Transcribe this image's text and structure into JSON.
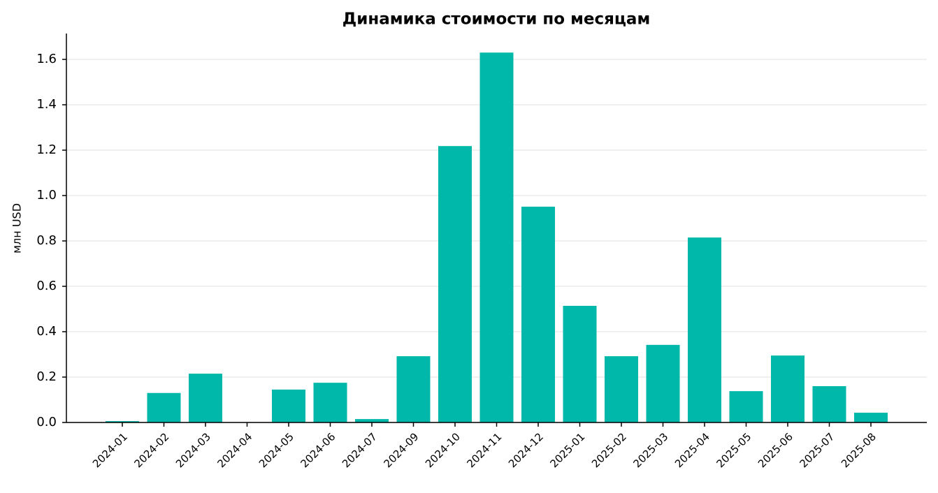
{
  "chart_data": {
    "type": "bar",
    "title": "Динамика стоимости по месяцам",
    "y_label": "млн USD",
    "categories": [
      "2024-01",
      "2024-02",
      "2024-03",
      "2024-04",
      "2024-05",
      "2024-06",
      "2024-07",
      "2024-09",
      "2024-10",
      "2024-11",
      "2024-12",
      "2025-01",
      "2025-02",
      "2025-03",
      "2025-04",
      "2025-05",
      "2025-06",
      "2025-07",
      "2025-08"
    ],
    "values": [
      0.006,
      0.13,
      0.215,
      0,
      0.145,
      0.175,
      0.015,
      0.292,
      1.218,
      1.63,
      0.951,
      0.514,
      0.292,
      0.342,
      0.815,
      0.138,
      0.295,
      0.16,
      0.043
    ],
    "color": "#00b8a9",
    "ylim": [
      0,
      1.714
    ],
    "yticks": [
      {
        "value": 0,
        "label": "0.0"
      },
      0.2,
      0.4,
      0.6,
      0.8,
      {
        "value": 1,
        "label": "1.0"
      },
      1.2,
      1.4,
      1.6
    ],
    "grid": true
  }
}
